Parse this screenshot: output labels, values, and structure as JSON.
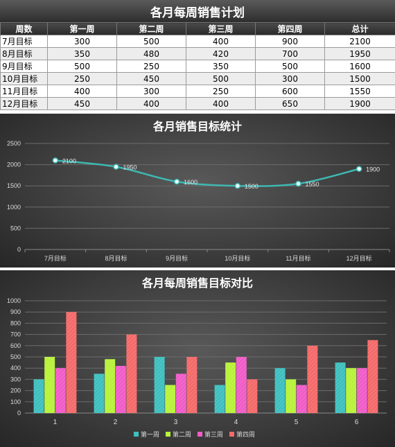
{
  "plan": {
    "title": "各月每周销售计划",
    "headers": [
      "周数",
      "第一周",
      "第二周",
      "第三周",
      "第四周",
      "总计"
    ],
    "rows": [
      {
        "label": "7月目标",
        "values": [
          300,
          500,
          400,
          900,
          2100
        ]
      },
      {
        "label": "8月目标",
        "values": [
          350,
          480,
          420,
          700,
          1950
        ]
      },
      {
        "label": "9月目标",
        "values": [
          500,
          250,
          350,
          500,
          1600
        ]
      },
      {
        "label": "10月目标",
        "values": [
          250,
          450,
          500,
          300,
          1500
        ]
      },
      {
        "label": "11月目标",
        "values": [
          400,
          300,
          250,
          600,
          1550
        ]
      },
      {
        "label": "12月目标",
        "values": [
          450,
          400,
          400,
          650,
          1900
        ]
      }
    ]
  },
  "chart_data": [
    {
      "type": "line",
      "title": "各月销售目标统计",
      "categories": [
        "7月目标",
        "8月目标",
        "9月目标",
        "10月目标",
        "11月目标",
        "12月目标"
      ],
      "values": [
        2100,
        1950,
        1600,
        1500,
        1550,
        1900
      ],
      "ylim": [
        0,
        2500
      ],
      "yticks": [
        0,
        500,
        1000,
        1500,
        2000,
        2500
      ],
      "smooth": true,
      "data_labels": true,
      "grid": true,
      "color": "#3fb8b3"
    },
    {
      "type": "bar",
      "title": "各月每周销售目标对比",
      "categories": [
        "1",
        "2",
        "3",
        "4",
        "5",
        "6"
      ],
      "series": [
        {
          "name": "第一周",
          "values": [
            300,
            350,
            500,
            250,
            400,
            450
          ],
          "color": "#3fbfbf"
        },
        {
          "name": "第二周",
          "values": [
            500,
            480,
            250,
            450,
            300,
            400
          ],
          "color": "#b8f23a"
        },
        {
          "name": "第三周",
          "values": [
            400,
            420,
            350,
            500,
            250,
            400
          ],
          "color": "#f05cc8"
        },
        {
          "name": "第四周",
          "values": [
            900,
            700,
            500,
            300,
            600,
            650
          ],
          "color": "#f56a6a"
        }
      ],
      "ylim": [
        0,
        1000
      ],
      "yticks": [
        0,
        100,
        200,
        300,
        400,
        500,
        600,
        700,
        800,
        900,
        1000
      ],
      "grid": true,
      "legend": "bottom"
    }
  ]
}
